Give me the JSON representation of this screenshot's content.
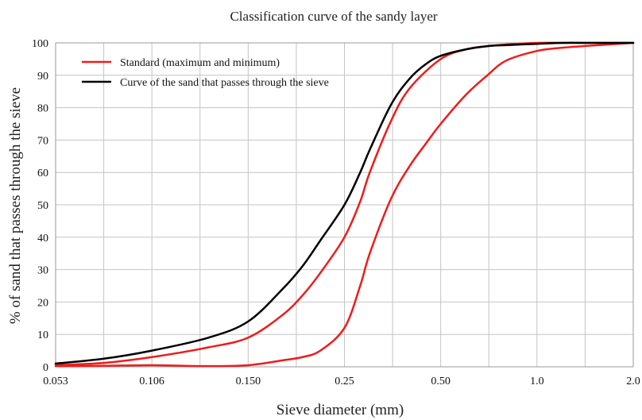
{
  "chart_data": {
    "type": "line",
    "title": "Classification curve of the sandy layer",
    "xlabel": "Sieve diameter (mm)",
    "ylabel": "% of sand that passes through the sieve",
    "x_tick_labels": [
      "0.053",
      "0.106",
      "0.150",
      "0.25",
      "0.50",
      "1.0",
      "2.0"
    ],
    "x_tick_values": [
      0.053,
      0.106,
      0.15,
      0.25,
      0.5,
      1.0,
      2.0
    ],
    "y_ticks": [
      0,
      10,
      20,
      30,
      40,
      50,
      60,
      70,
      80,
      90,
      100
    ],
    "ylim": [
      0,
      100
    ],
    "grid": true,
    "legend_position": "top-left",
    "legend": [
      {
        "label": "Standard (maximum and minimum)",
        "color": "#ee1c1c"
      },
      {
        "label": "Curve of the sand that passes through the sieve",
        "color": "#000000"
      }
    ],
    "series": [
      {
        "color": "#ee1c1c",
        "x": [
          0.053,
          0.075,
          0.106,
          0.13,
          0.15,
          0.18,
          0.2,
          0.22,
          0.25,
          0.28,
          0.3,
          0.35,
          0.4,
          0.45,
          0.5,
          0.6,
          0.7,
          0.8,
          1.0,
          1.2,
          1.5,
          2.0
        ],
        "y": [
          0.2,
          0.3,
          0.5,
          0.2,
          0.5,
          2,
          3,
          5,
          12,
          25,
          35,
          52,
          62,
          69,
          75,
          84,
          90,
          94.5,
          97.5,
          98.5,
          99.2,
          100
        ]
      },
      {
        "color": "#ee1c1c",
        "x": [
          0.053,
          0.075,
          0.106,
          0.13,
          0.15,
          0.18,
          0.2,
          0.22,
          0.25,
          0.28,
          0.3,
          0.35,
          0.4,
          0.5,
          0.6,
          0.7,
          0.8,
          1.0,
          1.2,
          1.5,
          2.0
        ],
        "y": [
          0.5,
          1.2,
          3,
          6,
          9,
          16,
          22,
          29,
          40,
          51,
          60,
          76,
          86,
          95,
          98,
          99,
          99.5,
          100,
          100,
          100,
          100
        ]
      },
      {
        "color": "#000000",
        "x": [
          0.053,
          0.075,
          0.106,
          0.13,
          0.15,
          0.18,
          0.2,
          0.22,
          0.25,
          0.28,
          0.3,
          0.35,
          0.4,
          0.45,
          0.5,
          0.6,
          0.7,
          0.8,
          1.0,
          1.2,
          1.5,
          2.0
        ],
        "y": [
          1,
          2.5,
          5,
          9,
          14,
          24,
          31,
          39,
          50,
          60,
          67,
          81,
          89,
          93.5,
          96,
          98,
          99,
          99.3,
          99.7,
          100,
          100,
          100
        ]
      }
    ]
  }
}
